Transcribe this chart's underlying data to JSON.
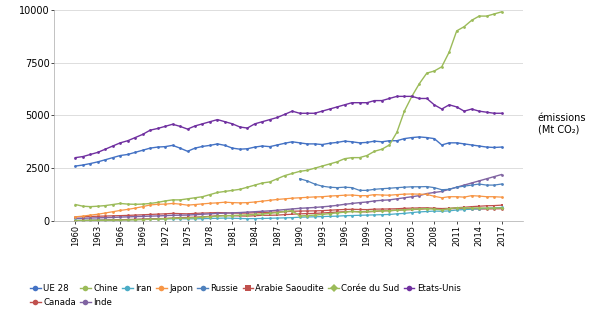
{
  "years": [
    1960,
    1961,
    1962,
    1963,
    1964,
    1965,
    1966,
    1967,
    1968,
    1969,
    1970,
    1971,
    1972,
    1973,
    1974,
    1975,
    1976,
    1977,
    1978,
    1979,
    1980,
    1981,
    1982,
    1983,
    1984,
    1985,
    1986,
    1987,
    1988,
    1989,
    1990,
    1991,
    1992,
    1993,
    1994,
    1995,
    1996,
    1997,
    1998,
    1999,
    2000,
    2001,
    2002,
    2003,
    2004,
    2005,
    2006,
    2007,
    2008,
    2009,
    2010,
    2011,
    2012,
    2013,
    2014,
    2015,
    2016,
    2017
  ],
  "series": {
    "UE 28": [
      2600,
      2650,
      2720,
      2800,
      2900,
      3000,
      3100,
      3150,
      3250,
      3350,
      3450,
      3500,
      3520,
      3580,
      3450,
      3300,
      3450,
      3530,
      3580,
      3650,
      3580,
      3450,
      3400,
      3420,
      3500,
      3550,
      3520,
      3600,
      3680,
      3750,
      3700,
      3650,
      3650,
      3620,
      3680,
      3720,
      3780,
      3750,
      3700,
      3720,
      3780,
      3750,
      3800,
      3800,
      3900,
      3950,
      3980,
      3950,
      3900,
      3600,
      3700,
      3700,
      3650,
      3600,
      3550,
      3500,
      3480,
      3500
    ],
    "Canada": [
      200,
      205,
      215,
      225,
      235,
      245,
      255,
      265,
      280,
      295,
      310,
      325,
      340,
      360,
      350,
      340,
      360,
      375,
      385,
      400,
      390,
      375,
      370,
      375,
      390,
      400,
      410,
      425,
      440,
      460,
      470,
      475,
      480,
      490,
      510,
      530,
      545,
      555,
      545,
      540,
      560,
      565,
      570,
      580,
      600,
      610,
      620,
      625,
      600,
      560,
      580,
      590,
      580,
      580,
      570,
      570,
      575,
      580
    ],
    "Chine": [
      780,
      700,
      680,
      700,
      730,
      780,
      830,
      800,
      790,
      800,
      830,
      880,
      950,
      1000,
      1000,
      1050,
      1100,
      1150,
      1250,
      1350,
      1400,
      1450,
      1500,
      1600,
      1700,
      1800,
      1850,
      2000,
      2150,
      2250,
      2350,
      2400,
      2500,
      2600,
      2700,
      2800,
      2950,
      3000,
      3000,
      3100,
      3300,
      3400,
      3600,
      4200,
      5200,
      5900,
      6500,
      7000,
      7100,
      7300,
      8000,
      9000,
      9200,
      9500,
      9700,
      9700,
      9800,
      9900
    ],
    "Inde": [
      120,
      130,
      140,
      150,
      160,
      170,
      185,
      195,
      210,
      220,
      230,
      240,
      255,
      270,
      275,
      280,
      300,
      320,
      340,
      360,
      370,
      385,
      400,
      420,
      440,
      460,
      480,
      510,
      540,
      570,
      600,
      620,
      640,
      670,
      700,
      740,
      790,
      830,
      870,
      900,
      950,
      980,
      1000,
      1050,
      1100,
      1150,
      1200,
      1300,
      1350,
      1400,
      1500,
      1600,
      1700,
      1800,
      1900,
      2000,
      2100,
      2200
    ],
    "Iran": [
      30,
      35,
      40,
      45,
      50,
      55,
      60,
      65,
      70,
      80,
      90,
      95,
      100,
      105,
      110,
      100,
      105,
      110,
      120,
      130,
      140,
      130,
      120,
      110,
      115,
      120,
      130,
      140,
      150,
      160,
      180,
      190,
      200,
      210,
      220,
      230,
      250,
      260,
      270,
      280,
      290,
      300,
      310,
      340,
      360,
      400,
      430,
      450,
      470,
      460,
      480,
      520,
      540,
      560,
      580,
      600,
      620,
      640
    ],
    "Japon": [
      200,
      230,
      280,
      320,
      380,
      440,
      500,
      550,
      610,
      680,
      760,
      790,
      800,
      830,
      800,
      750,
      780,
      810,
      840,
      860,
      890,
      870,
      860,
      870,
      900,
      940,
      980,
      1020,
      1050,
      1080,
      1100,
      1120,
      1140,
      1150,
      1180,
      1200,
      1220,
      1230,
      1200,
      1200,
      1250,
      1230,
      1220,
      1250,
      1270,
      1280,
      1270,
      1260,
      1170,
      1100,
      1150,
      1150,
      1130,
      1200,
      1180,
      1150,
      1150,
      1130
    ],
    "Russie": [
      null,
      null,
      null,
      null,
      null,
      null,
      null,
      null,
      null,
      null,
      null,
      null,
      null,
      null,
      null,
      null,
      null,
      null,
      null,
      null,
      null,
      null,
      null,
      null,
      null,
      null,
      null,
      null,
      null,
      null,
      2000,
      1900,
      1750,
      1650,
      1600,
      1580,
      1600,
      1580,
      1450,
      1450,
      1500,
      1530,
      1550,
      1580,
      1600,
      1620,
      1620,
      1630,
      1580,
      1480,
      1500,
      1600,
      1650,
      1700,
      1750,
      1700,
      1700,
      1750
    ],
    "Arabie Saoudite": [
      20,
      25,
      30,
      35,
      40,
      50,
      60,
      70,
      80,
      90,
      100,
      110,
      120,
      140,
      160,
      170,
      180,
      200,
      220,
      250,
      260,
      250,
      240,
      230,
      250,
      270,
      270,
      280,
      300,
      320,
      340,
      350,
      360,
      380,
      400,
      420,
      440,
      450,
      440,
      430,
      450,
      480,
      490,
      510,
      530,
      540,
      560,
      580,
      600,
      590,
      600,
      630,
      650,
      680,
      700,
      720,
      730,
      750
    ],
    "Coree du Sud": [
      20,
      22,
      25,
      28,
      32,
      38,
      44,
      50,
      58,
      68,
      80,
      95,
      110,
      130,
      130,
      140,
      160,
      180,
      205,
      230,
      250,
      260,
      275,
      290,
      310,
      335,
      365,
      400,
      450,
      490,
      240,
      255,
      280,
      310,
      350,
      385,
      420,
      455,
      430,
      450,
      470,
      480,
      490,
      510,
      530,
      550,
      570,
      590,
      560,
      530,
      590,
      620,
      620,
      620,
      620,
      610,
      610,
      620
    ],
    "Etats-Unis": [
      3000,
      3050,
      3150,
      3250,
      3400,
      3550,
      3700,
      3800,
      3950,
      4100,
      4300,
      4380,
      4480,
      4580,
      4480,
      4350,
      4500,
      4600,
      4700,
      4800,
      4700,
      4600,
      4450,
      4400,
      4600,
      4700,
      4800,
      4900,
      5050,
      5200,
      5100,
      5100,
      5100,
      5200,
      5300,
      5400,
      5500,
      5600,
      5600,
      5600,
      5700,
      5700,
      5800,
      5900,
      5900,
      5900,
      5800,
      5800,
      5500,
      5300,
      5500,
      5400,
      5200,
      5300,
      5200,
      5150,
      5100,
      5100
    ]
  },
  "line_configs": {
    "UE 28": {
      "color": "#4472C4",
      "marker": "o",
      "ms": 2.0,
      "lw": 1.0
    },
    "Canada": {
      "color": "#C0504D",
      "marker": "o",
      "ms": 2.0,
      "lw": 0.9
    },
    "Chine": {
      "color": "#9BBB59",
      "marker": "o",
      "ms": 2.0,
      "lw": 1.0
    },
    "Inde": {
      "color": "#8064A2",
      "marker": "o",
      "ms": 2.0,
      "lw": 1.0
    },
    "Iran": {
      "color": "#4BACC6",
      "marker": "o",
      "ms": 2.0,
      "lw": 0.9
    },
    "Japon": {
      "color": "#F79646",
      "marker": "o",
      "ms": 2.0,
      "lw": 0.9
    },
    "Russie": {
      "color": "#4F81BD",
      "marker": "o",
      "ms": 2.0,
      "lw": 0.9
    },
    "Arabie Saoudite": {
      "color": "#C0504D",
      "marker": "s",
      "ms": 2.0,
      "lw": 0.9
    },
    "Coree du Sud": {
      "color": "#9BBB59",
      "marker": "D",
      "ms": 2.0,
      "lw": 1.0
    },
    "Etats-Unis": {
      "color": "#7030A0",
      "marker": "o",
      "ms": 2.0,
      "lw": 1.0
    }
  },
  "series_order": [
    "UE 28",
    "Canada",
    "Chine",
    "Inde",
    "Iran",
    "Japon",
    "Russie",
    "Arabie Saoudite",
    "Coree du Sud",
    "Etats-Unis"
  ],
  "legend_row1": [
    {
      "label": "UE 28",
      "color": "#4472C4",
      "marker": "o"
    },
    {
      "label": "Canada",
      "color": "#C0504D",
      "marker": "o"
    },
    {
      "label": "Chine",
      "color": "#9BBB59",
      "marker": "o"
    },
    {
      "label": "Inde",
      "color": "#8064A2",
      "marker": "o"
    },
    {
      "label": "Iran",
      "color": "#4BACC6",
      "marker": "o"
    },
    {
      "label": "Japon",
      "color": "#F79646",
      "marker": "o"
    },
    {
      "label": "Russie",
      "color": "#4F81BD",
      "marker": "o"
    },
    {
      "label": "Arabie Saoudite",
      "color": "#C0504D",
      "marker": "s"
    }
  ],
  "legend_row2": [
    {
      "label": "Corée du Sud",
      "color": "#9BBB59",
      "marker": "D"
    },
    {
      "label": "Etats-Unis",
      "color": "#7030A0",
      "marker": "o"
    }
  ],
  "ylim": [
    0,
    10000
  ],
  "yticks": [
    0,
    2500,
    5000,
    7500,
    10000
  ],
  "xticks": [
    1960,
    1963,
    1966,
    1969,
    1972,
    1975,
    1978,
    1981,
    1984,
    1987,
    1990,
    1993,
    1996,
    1999,
    2002,
    2005,
    2008,
    2011,
    2014,
    2017
  ],
  "ylabel_text": "émissions\n(Mt CO₂)",
  "bg_color": "#ffffff"
}
